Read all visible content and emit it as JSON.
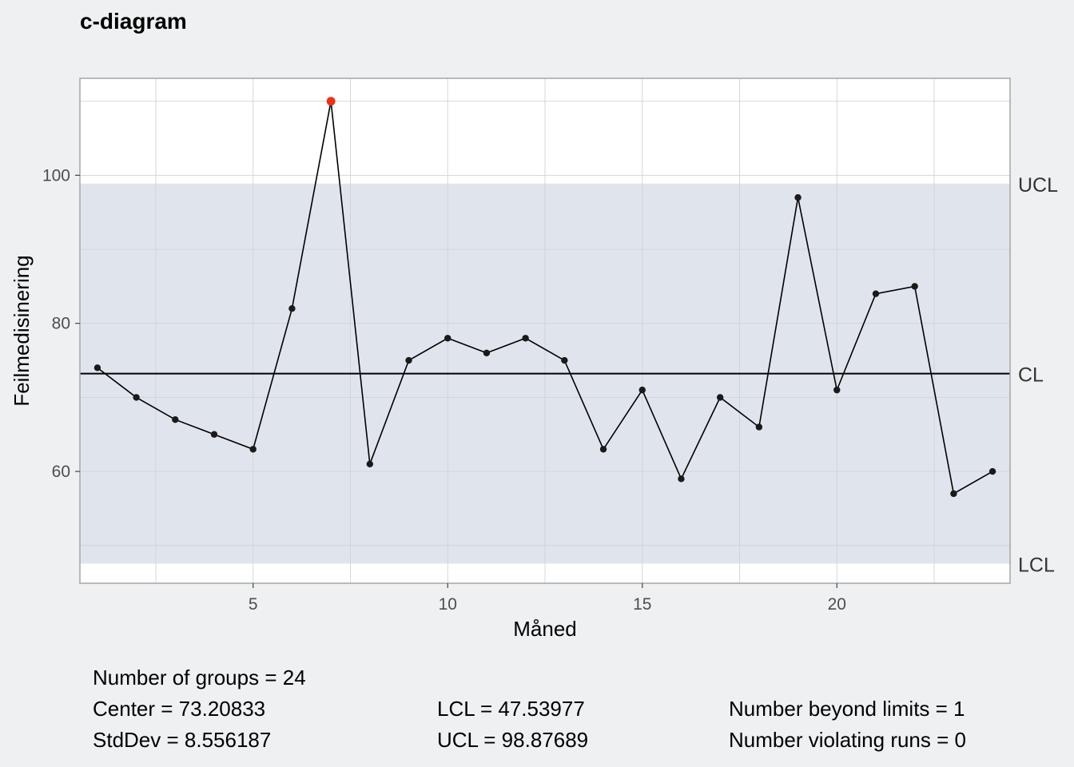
{
  "chart_data": {
    "type": "line",
    "title": "c-diagram",
    "xlabel": "Måned",
    "ylabel": "Feilmedisinering",
    "xlim": [
      0.55,
      24.45
    ],
    "ylim": [
      44.9,
      113.1
    ],
    "x_ticks": [
      5,
      10,
      15,
      20
    ],
    "y_ticks": [
      60,
      80,
      100
    ],
    "grid": true,
    "x": [
      1,
      2,
      3,
      4,
      5,
      6,
      7,
      8,
      9,
      10,
      11,
      12,
      13,
      14,
      15,
      16,
      17,
      18,
      19,
      20,
      21,
      22,
      23,
      24
    ],
    "values": [
      74,
      70,
      67,
      65,
      63,
      82,
      110,
      61,
      75,
      78,
      76,
      78,
      75,
      63,
      71,
      59,
      70,
      66,
      97,
      71,
      84,
      85,
      57,
      60
    ],
    "center": 73.20833,
    "lcl": 47.53977,
    "ucl": 98.87689,
    "limit_labels": {
      "ucl": "UCL",
      "cl": "CL",
      "lcl": "LCL"
    },
    "beyond_limits_x": [
      7
    ],
    "colors": {
      "band": "#e0e5ed",
      "point": "#1a1a1a",
      "beyond": "#e8331c",
      "plot_bg": "#ffffff",
      "page_bg": "#eff0f2"
    }
  },
  "stats": {
    "groups": "Number of groups = 24",
    "center": "Center = 73.20833",
    "stddev": "StdDev = 8.556187",
    "lcl": "LCL = 47.53977",
    "ucl": "UCL = 98.87689",
    "beyond": "Number beyond limits = 1",
    "runs": "Number violating runs = 0"
  }
}
